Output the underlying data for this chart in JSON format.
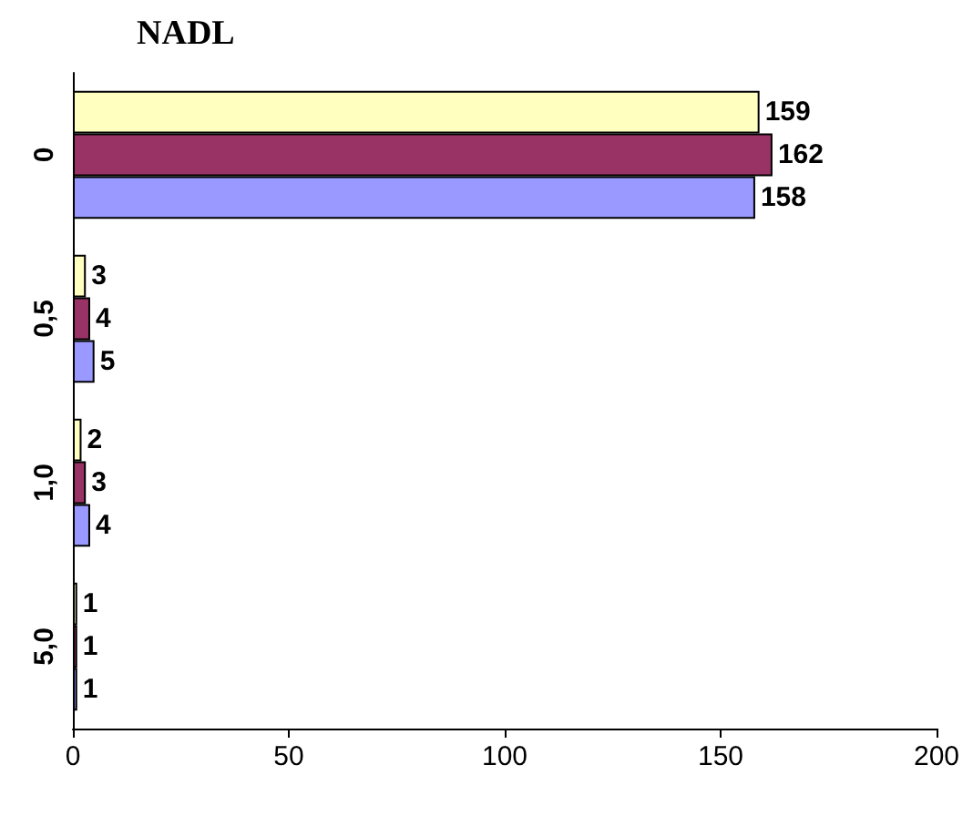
{
  "chart_data": {
    "type": "bar",
    "orientation": "horizontal",
    "title": "NADL",
    "categories": [
      "0",
      "0,5",
      "1,0",
      "5,0"
    ],
    "series": [
      {
        "color": "#ffffc0",
        "values": [
          159,
          3,
          2,
          1
        ]
      },
      {
        "color": "#993366",
        "values": [
          162,
          4,
          3,
          1
        ]
      },
      {
        "color": "#9999ff",
        "values": [
          158,
          5,
          4,
          1
        ]
      }
    ],
    "xlim": [
      0,
      200
    ],
    "xticks": [
      0,
      50,
      100,
      150,
      200
    ],
    "grid": false,
    "data_labels": true
  }
}
